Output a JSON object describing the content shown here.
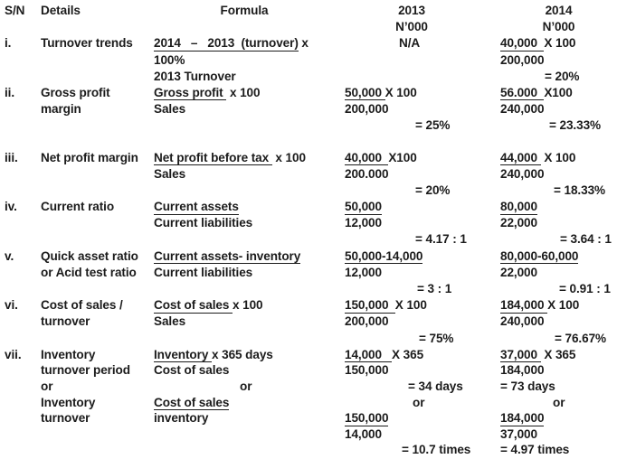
{
  "document": {
    "background": "#ffffff",
    "text_color": "#1b1b1b"
  },
  "header": {
    "sn": "S/N",
    "details": "Details",
    "formula": "Formula",
    "y2013_label": "2013",
    "y2013_unit": "N’000",
    "y2014_label": "2014",
    "y2014_unit": "N’000"
  },
  "rows": [
    {
      "sn": "i.",
      "details": [
        {
          "seg": [
            {
              "s": "Turnover trends"
            }
          ]
        }
      ],
      "formula": [
        {
          "seg": [
            {
              "s": "2014   –   2013  (turnover)",
              "u": true
            },
            {
              "s": " x"
            }
          ]
        },
        {
          "seg": [
            {
              "s": "100%"
            }
          ]
        },
        {
          "seg": [
            {
              "s": "2013 Turnover"
            }
          ]
        }
      ],
      "y2013": [
        {
          "in": 60,
          "seg": [
            {
              "s": "N/A"
            }
          ]
        }
      ],
      "y2014": [
        {
          "seg": [
            {
              "s": "40,000  ",
              "u": true
            },
            {
              "s": "X 100"
            }
          ]
        },
        {
          "seg": [
            {
              "s": "200,000"
            }
          ]
        },
        {
          "in": 49,
          "seg": [
            {
              "s": "= 20%"
            }
          ]
        }
      ]
    },
    {
      "sn": "ii.",
      "details": [
        {
          "seg": [
            {
              "s": "Gross profit"
            }
          ]
        },
        {
          "seg": [
            {
              "s": "margin"
            }
          ]
        }
      ],
      "formula": [
        {
          "seg": [
            {
              "s": "Gross profit ",
              "u": true
            },
            {
              "s": " x 100"
            }
          ]
        },
        {
          "seg": [
            {
              "s": "Sales"
            }
          ]
        }
      ],
      "y2013": [
        {
          "seg": [
            {
              "s": "50,000 ",
              "u": true
            },
            {
              "s": "X 100"
            }
          ]
        },
        {
          "seg": [
            {
              "s": "200,000"
            }
          ]
        },
        {
          "in": 78,
          "seg": [
            {
              "s": "= 25%"
            }
          ]
        }
      ],
      "y2014": [
        {
          "seg": [
            {
              "s": "56.000  ",
              "u": true
            },
            {
              "s": "X100"
            }
          ]
        },
        {
          "seg": [
            {
              "s": "240,000"
            }
          ]
        },
        {
          "in": 54,
          "seg": [
            {
              "s": "= 23.33%"
            }
          ]
        }
      ]
    },
    {
      "sn": "iii.",
      "details": [
        {
          "seg": [
            {
              "s": "Net profit margin"
            }
          ]
        }
      ],
      "formula": [
        {
          "seg": [
            {
              "s": "Net profit before tax ",
              "u": true
            },
            {
              "s": " x 100"
            }
          ]
        },
        {
          "seg": [
            {
              "s": "Sales"
            }
          ]
        }
      ],
      "y2013": [
        {
          "seg": [
            {
              "s": "40,000  ",
              "u": true
            },
            {
              "s": "X100"
            }
          ]
        },
        {
          "seg": [
            {
              "s": "200.000"
            }
          ]
        },
        {
          "in": 78,
          "seg": [
            {
              "s": "= 20%"
            }
          ]
        }
      ],
      "y2014": [
        {
          "seg": [
            {
              "s": "44,000 ",
              "u": true
            },
            {
              "s": " X 100"
            }
          ]
        },
        {
          "seg": [
            {
              "s": "240,000"
            }
          ]
        },
        {
          "in": 59,
          "seg": [
            {
              "s": "= 18.33%"
            }
          ]
        }
      ]
    },
    {
      "sn": "iv.",
      "details": [
        {
          "seg": [
            {
              "s": "Current ratio"
            }
          ]
        }
      ],
      "formula": [
        {
          "seg": [
            {
              "s": "Current assets",
              "u": true
            }
          ]
        },
        {
          "seg": [
            {
              "s": "Current liabilities"
            }
          ]
        }
      ],
      "y2013": [
        {
          "seg": [
            {
              "s": "50,000",
              "u": true
            }
          ]
        },
        {
          "seg": [
            {
              "s": "12,000"
            }
          ]
        },
        {
          "in": 78,
          "seg": [
            {
              "s": "= 4.17 : 1"
            }
          ]
        }
      ],
      "y2014": [
        {
          "seg": [
            {
              "s": "80,000",
              "u": true
            }
          ]
        },
        {
          "seg": [
            {
              "s": "22,000"
            }
          ]
        },
        {
          "in": 66,
          "seg": [
            {
              "s": "= 3.64 : 1"
            }
          ]
        }
      ]
    },
    {
      "sn": "v.",
      "details": [
        {
          "seg": [
            {
              "s": "Quick asset ratio"
            }
          ]
        },
        {
          "seg": [
            {
              "s": "or Acid test ratio"
            }
          ]
        }
      ],
      "formula": [
        {
          "seg": [
            {
              "s": "Current assets- inventory",
              "u": true
            }
          ]
        },
        {
          "seg": [
            {
              "s": "Current liabilities"
            }
          ]
        }
      ],
      "y2013": [
        {
          "seg": [
            {
              "s": "50,000-14,000",
              "u": true
            }
          ]
        },
        {
          "seg": [
            {
              "s": "12,000"
            }
          ]
        },
        {
          "in": 80,
          "seg": [
            {
              "s": "= 3 : 1"
            }
          ]
        }
      ],
      "y2014": [
        {
          "seg": [
            {
              "s": "80,000-60,000",
              "u": true
            }
          ]
        },
        {
          "seg": [
            {
              "s": "22,000"
            }
          ]
        },
        {
          "in": 65,
          "seg": [
            {
              "s": "= 0.91 : 1"
            }
          ]
        }
      ]
    },
    {
      "sn": "vi.",
      "details": [
        {
          "seg": [
            {
              "s": "Cost of sales /"
            }
          ]
        },
        {
          "seg": [
            {
              "s": "turnover"
            }
          ]
        }
      ],
      "formula": [
        {
          "seg": [
            {
              "s": "Cost of sales ",
              "u": true
            },
            {
              "s": "x 100"
            }
          ]
        },
        {
          "seg": [
            {
              "s": "Sales"
            }
          ]
        }
      ],
      "y2013": [
        {
          "seg": [
            {
              "s": "150,000  ",
              "u": true
            },
            {
              "s": "X 100"
            }
          ]
        },
        {
          "seg": [
            {
              "s": "200,000"
            }
          ]
        },
        {
          "in": 82,
          "seg": [
            {
              "s": "= 75%"
            }
          ]
        }
      ],
      "y2014": [
        {
          "seg": [
            {
              "s": "184,000 ",
              "u": true
            },
            {
              "s": "X 100"
            }
          ]
        },
        {
          "seg": [
            {
              "s": "240,000"
            }
          ]
        },
        {
          "in": 60,
          "seg": [
            {
              "s": "= 76.67%"
            }
          ]
        }
      ]
    },
    {
      "sn": "vii.",
      "details": [
        {
          "seg": [
            {
              "s": "Inventory"
            }
          ]
        },
        {
          "seg": [
            {
              "s": "turnover period"
            }
          ]
        },
        {
          "seg": [
            {
              "s": "or"
            }
          ]
        },
        {
          "seg": [
            {
              "s": "Inventory"
            }
          ]
        },
        {
          "seg": [
            {
              "s": "turnover"
            }
          ]
        }
      ],
      "formula": [
        {
          "seg": [
            {
              "s": "Inventory ",
              "u": true
            },
            {
              "s": "x 365 days"
            }
          ]
        },
        {
          "seg": [
            {
              "s": "Cost of sales"
            }
          ]
        },
        {
          "in": 95,
          "seg": [
            {
              "s": "or"
            }
          ]
        },
        {
          "seg": [
            {
              "s": "Cost of sales",
              "u": true
            }
          ]
        },
        {
          "seg": [
            {
              "s": "inventory"
            }
          ]
        }
      ],
      "y2013": [
        {
          "seg": [
            {
              "s": "14,000   ",
              "u": true
            },
            {
              "s": "X 365"
            }
          ]
        },
        {
          "seg": [
            {
              "s": "150,000"
            }
          ]
        },
        {
          "in": 70,
          "seg": [
            {
              "s": "= 34 days"
            }
          ]
        },
        {
          "in": 75,
          "seg": [
            {
              "s": "or"
            }
          ]
        },
        {
          "seg": [
            {
              "s": "150,000",
              "u": true
            }
          ]
        },
        {
          "seg": [
            {
              "s": "14,000"
            }
          ]
        },
        {
          "in": 63,
          "seg": [
            {
              "s": "= 10.7 times"
            }
          ]
        }
      ],
      "y2014": [
        {
          "seg": [
            {
              "s": "37,000 ",
              "u": true
            },
            {
              "s": " X 365"
            }
          ]
        },
        {
          "seg": [
            {
              "s": "184,000"
            }
          ]
        },
        {
          "seg": [
            {
              "s": "= 73 days"
            }
          ]
        },
        {
          "in": 58,
          "seg": [
            {
              "s": "or"
            }
          ]
        },
        {
          "seg": [
            {
              "s": "184,000",
              "u": true
            }
          ]
        },
        {
          "seg": [
            {
              "s": "37,000"
            }
          ]
        },
        {
          "seg": [
            {
              "s": "= 4.97 times"
            }
          ]
        }
      ]
    }
  ]
}
